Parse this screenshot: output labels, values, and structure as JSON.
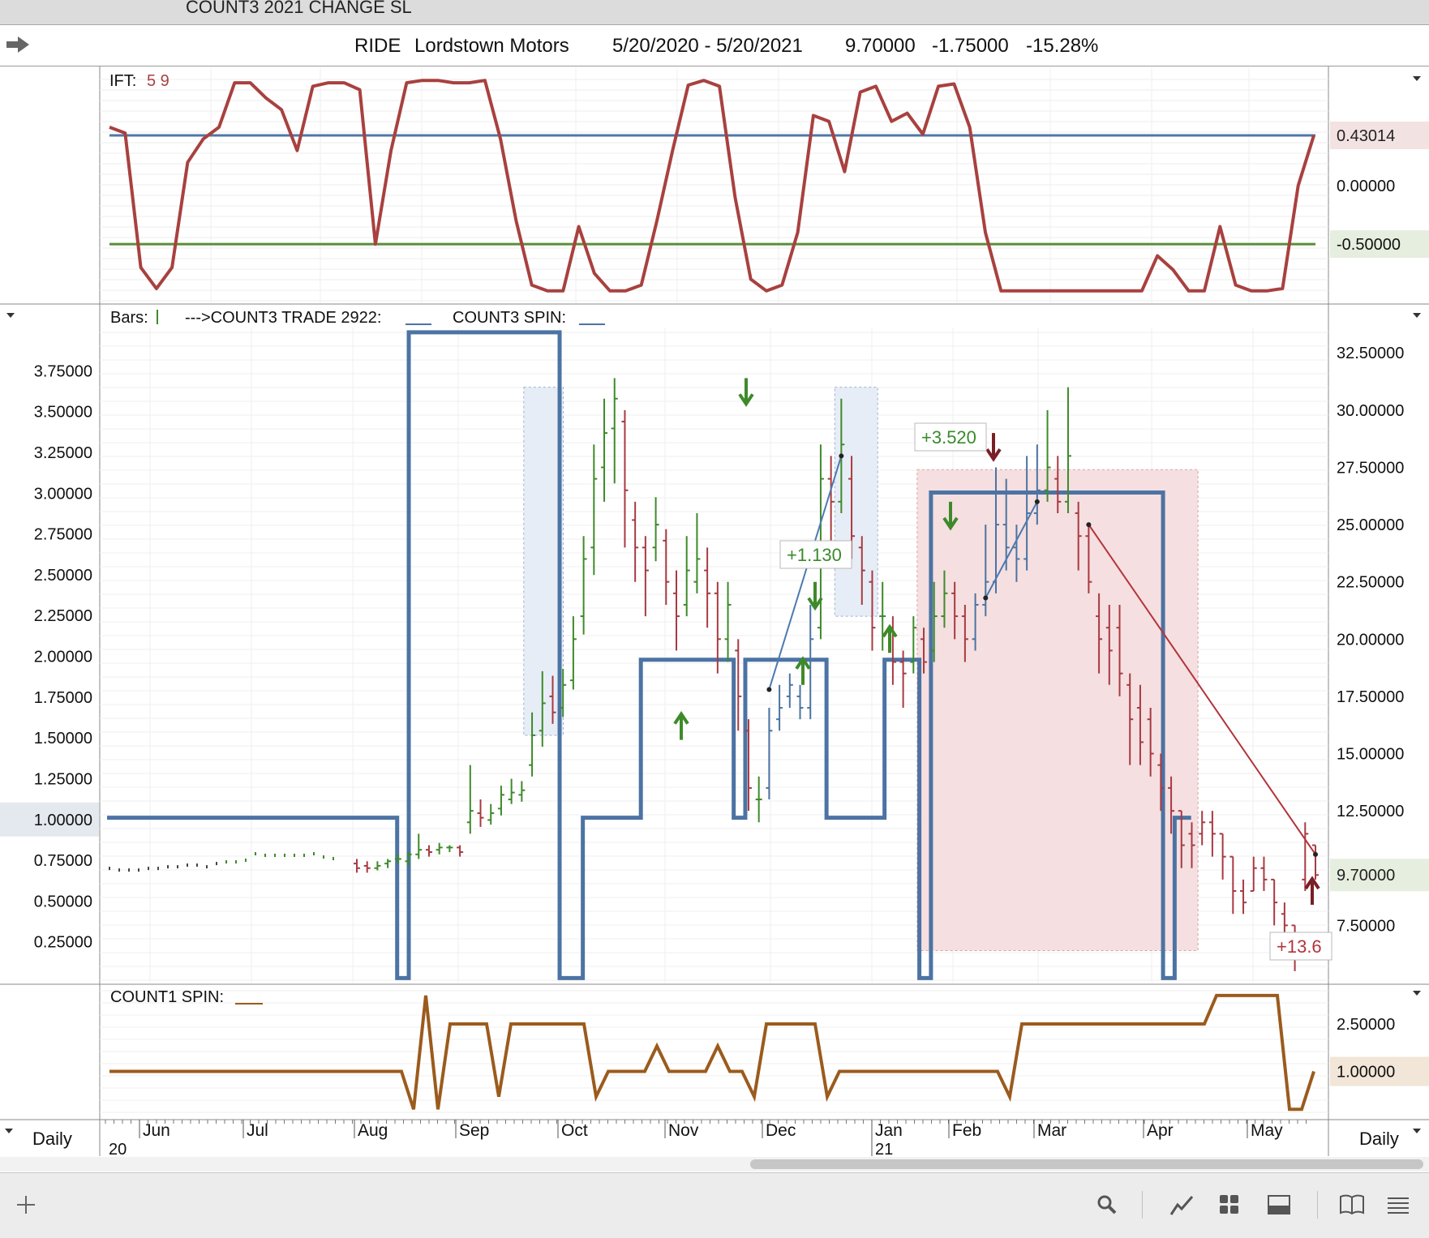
{
  "window": {
    "title": "COUNT3 2021 CHANGE SL"
  },
  "symbol_bar": {
    "ticker": "RIDE",
    "name": "Lordstown Motors",
    "range": "5/20/2020 - 5/20/2021",
    "last": "9.70000",
    "change": "-1.75000",
    "pct": "-15.28%"
  },
  "icons": [
    "arrow-right-icon",
    "plus-icon",
    "search-icon",
    "draw-icon",
    "grid-icon",
    "layout-icon",
    "book-icon",
    "menu-icon"
  ],
  "colors": {
    "ift": "#a8413f",
    "blue_line": "#5077a6",
    "green_line": "#5a8d38",
    "up_bar": "#3e8a2a",
    "down_bar": "#a83a42",
    "spin_blue": "#4c73a3",
    "count1": "#9b5b1d",
    "pink_region": "#f5dfe0",
    "blue_region": "#e7edf6"
  },
  "chart_data": [
    {
      "type": "line",
      "panel": "IFT",
      "label": "IFT:",
      "params": "5 9",
      "reference_lines": [
        {
          "value": 0.43014,
          "label": "0.43014",
          "color": "#5077a6"
        },
        {
          "value": -0.5,
          "label": "-0.50000",
          "color": "#5a8d38"
        }
      ],
      "right_ticks": [
        "0.00000"
      ],
      "ylim": [
        -0.95,
        0.95
      ],
      "series": [
        {
          "values": [
            0.5,
            0.45,
            -0.7,
            -0.88,
            -0.7,
            0.2,
            0.4,
            0.5,
            0.88,
            0.88,
            0.75,
            0.65,
            0.3,
            0.85,
            0.88,
            0.88,
            0.82,
            -0.5,
            0.3,
            0.88,
            0.9,
            0.9,
            0.88,
            0.88,
            0.9,
            0.4,
            -0.3,
            -0.85,
            -0.9,
            -0.9,
            -0.35,
            -0.75,
            -0.9,
            -0.9,
            -0.85,
            -0.3,
            0.3,
            0.86,
            0.9,
            0.85,
            -0.1,
            -0.8,
            -0.9,
            -0.85,
            -0.4,
            0.6,
            0.55,
            0.12,
            0.8,
            0.85,
            0.55,
            0.62,
            0.44,
            0.85,
            0.87,
            0.5,
            -0.4,
            -0.9,
            -0.9,
            -0.9,
            -0.9,
            -0.9,
            -0.9,
            -0.9,
            -0.9,
            -0.9,
            -0.9,
            -0.6,
            -0.72,
            -0.9,
            -0.9,
            -0.35,
            -0.85,
            -0.9,
            -0.9,
            -0.88,
            0.0,
            0.43
          ]
        }
      ]
    },
    {
      "type": "bar",
      "panel": "Price",
      "legend": [
        "Bars:",
        "--->COUNT3 TRADE 2922:",
        "COUNT3 SPIN:"
      ],
      "left_axis_ticks": [
        "3.75000",
        "3.50000",
        "3.25000",
        "3.00000",
        "2.75000",
        "2.50000",
        "2.25000",
        "2.00000",
        "1.75000",
        "1.50000",
        "1.25000",
        "1.00000",
        "0.75000",
        "0.50000",
        "0.25000"
      ],
      "left_axis_highlight": "1.00000",
      "left_ylim": [
        0,
        4.0
      ],
      "right_axis_ticks": [
        "32.50000",
        "30.00000",
        "27.50000",
        "25.00000",
        "22.50000",
        "20.00000",
        "17.50000",
        "15.00000",
        "12.50000",
        "7.50000"
      ],
      "right_axis_highlight": "9.70000",
      "right_ylim": [
        5,
        33.5
      ],
      "ohlc": [
        [
          10.2,
          10.0,
          10.4,
          9.8
        ],
        [
          10.1,
          10.0,
          10.3,
          9.8
        ],
        [
          10.0,
          10.1,
          10.3,
          9.9
        ],
        [
          10.2,
          10.3,
          10.4,
          10.0
        ],
        [
          10.4,
          10.4,
          10.6,
          10.2
        ],
        [
          10.3,
          10.6,
          10.7,
          10.1
        ],
        [
          10.6,
          10.8,
          11.5,
          10.4
        ],
        [
          10.8,
          10.7,
          11.0,
          10.5
        ],
        [
          10.8,
          10.9,
          11.1,
          10.6
        ],
        [
          10.9,
          10.9,
          11.0,
          10.7
        ],
        [
          10.9,
          10.7,
          11.0,
          10.5
        ],
        [
          12.0,
          12.5,
          14.5,
          11.5
        ],
        [
          12.4,
          12.2,
          13.0,
          11.8
        ],
        [
          12.1,
          12.4,
          12.8,
          11.9
        ],
        [
          12.6,
          13.2,
          13.6,
          12.3
        ],
        [
          13.0,
          13.3,
          13.9,
          12.8
        ],
        [
          13.2,
          13.4,
          13.8,
          12.9
        ],
        [
          14.5,
          15.8,
          16.8,
          14.0
        ],
        [
          16.0,
          17.2,
          18.6,
          15.3
        ],
        [
          17.5,
          16.8,
          18.4,
          16.3
        ],
        [
          17.0,
          18.0,
          18.7,
          16.6
        ],
        [
          18.2,
          20.0,
          21.0,
          17.8
        ],
        [
          21.0,
          23.5,
          24.5,
          20.2
        ],
        [
          24.0,
          27.0,
          28.5,
          22.8
        ],
        [
          27.5,
          29.0,
          30.5,
          26.0
        ],
        [
          29.2,
          30.5,
          31.4,
          26.8
        ],
        [
          29.5,
          26.5,
          30.0,
          24.0
        ],
        [
          25.2,
          24.0,
          26.0,
          22.5
        ],
        [
          24.0,
          23.0,
          24.5,
          21.0
        ],
        [
          24.0,
          25.0,
          26.2,
          23.4
        ],
        [
          24.3,
          22.5,
          24.8,
          21.5
        ],
        [
          22.0,
          21.0,
          23.0,
          19.5
        ],
        [
          21.5,
          23.0,
          24.5,
          21.0
        ],
        [
          22.5,
          23.5,
          25.5,
          22.0
        ],
        [
          23.0,
          22.0,
          24.0,
          20.5
        ],
        [
          22.0,
          20.0,
          22.5,
          18.5
        ],
        [
          20.0,
          21.5,
          22.5,
          19.0
        ],
        [
          19.5,
          17.5,
          20.0,
          16.0
        ],
        [
          16.0,
          13.5,
          16.5,
          12.5
        ],
        [
          13.0,
          13.0,
          14.0,
          12.0
        ],
        [
          13.5,
          16.0,
          17.0,
          13.0
        ],
        [
          16.5,
          17.0,
          18.0,
          16.0
        ],
        [
          17.5,
          18.0,
          18.5,
          17.0
        ],
        [
          17.5,
          17.0,
          18.0,
          16.5
        ],
        [
          17.0,
          20.0,
          21.5,
          16.5
        ],
        [
          20.5,
          27.0,
          28.5,
          20.0
        ],
        [
          27.0,
          26.0,
          28.0,
          24.0
        ],
        [
          26.0,
          28.5,
          30.5,
          25.5
        ],
        [
          27.0,
          24.5,
          28.0,
          23.5
        ],
        [
          24.0,
          23.0,
          24.5,
          21.5
        ],
        [
          22.5,
          20.5,
          23.0,
          19.5
        ],
        [
          21.0,
          21.0,
          22.5,
          19.5
        ],
        [
          20.5,
          19.0,
          21.0,
          18.0
        ],
        [
          19.0,
          18.5,
          19.5,
          17.0
        ],
        [
          19.0,
          20.5,
          21.0,
          18.5
        ],
        [
          20.0,
          19.0,
          20.5,
          18.5
        ],
        [
          19.5,
          21.0,
          22.5,
          19.0
        ],
        [
          21.0,
          22.0,
          23.0,
          20.5
        ],
        [
          22.0,
          21.0,
          22.5,
          20.0
        ],
        [
          21.0,
          20.0,
          21.5,
          19.0
        ],
        [
          20.0,
          21.5,
          22.0,
          19.5
        ],
        [
          21.5,
          22.5,
          25.0,
          21.0
        ],
        [
          22.5,
          25.0,
          27.5,
          22.0
        ],
        [
          25.0,
          24.0,
          27.0,
          23.0
        ],
        [
          24.0,
          23.5,
          25.0,
          22.5
        ],
        [
          23.5,
          25.5,
          28.0,
          23.0
        ],
        [
          25.5,
          26.5,
          28.5,
          25.0
        ],
        [
          26.5,
          27.5,
          30.0,
          26.0
        ],
        [
          27.0,
          26.0,
          28.0,
          25.5
        ],
        [
          26.0,
          28.0,
          31.0,
          25.5
        ],
        [
          25.5,
          24.5,
          26.0,
          23.0
        ],
        [
          24.5,
          22.5,
          25.0,
          22.0
        ],
        [
          21.0,
          20.0,
          22.0,
          18.5
        ],
        [
          20.5,
          19.5,
          21.5,
          18.0
        ],
        [
          20.5,
          18.5,
          21.5,
          17.5
        ],
        [
          18.0,
          16.5,
          18.5,
          14.5
        ],
        [
          17.0,
          15.5,
          18.0,
          14.5
        ],
        [
          16.5,
          15.0,
          17.0,
          14.0
        ],
        [
          14.5,
          13.5,
          15.0,
          12.5
        ],
        [
          13.5,
          12.5,
          14.0,
          11.5
        ],
        [
          12.5,
          11.0,
          12.5,
          10.0
        ],
        [
          11.5,
          11.0,
          12.0,
          10.0
        ],
        [
          11.5,
          12.0,
          12.5,
          11.0
        ],
        [
          12.0,
          11.5,
          12.5,
          10.5
        ],
        [
          11.5,
          10.5,
          11.5,
          9.5
        ],
        [
          10.5,
          9.0,
          10.5,
          8.0
        ],
        [
          9.0,
          8.5,
          9.5,
          8.0
        ],
        [
          9.0,
          10.0,
          10.5,
          9.0
        ],
        [
          10.0,
          9.5,
          10.5,
          9.0
        ],
        [
          9.5,
          8.5,
          9.5,
          7.5
        ],
        [
          8.0,
          7.5,
          8.5,
          6.5
        ],
        [
          7.5,
          6.5,
          7.5,
          5.5
        ],
        [
          9.5,
          11.5,
          12.0,
          9.0
        ],
        [
          11.0,
          9.7,
          11.0,
          9.5
        ]
      ],
      "trades": [
        {
          "label": "+1.130",
          "direction": "long"
        },
        {
          "label": "+3.520",
          "direction": "long"
        },
        {
          "label": "+13.6",
          "direction": "short"
        }
      ],
      "spin_series": {
        "name": "COUNT3 SPIN",
        "values": [
          1,
          1,
          1,
          1,
          1,
          1,
          1,
          1,
          1,
          1,
          1,
          1,
          1,
          1,
          1,
          1,
          1,
          1,
          1,
          1,
          1,
          1,
          1,
          1,
          1,
          0,
          4,
          4,
          4,
          4,
          4,
          4,
          4,
          4,
          4,
          4,
          4,
          4,
          4,
          0,
          0,
          1,
          1,
          1,
          1,
          1,
          2,
          2,
          2,
          2,
          2,
          2,
          2,
          2,
          1,
          2,
          2,
          2,
          2,
          2,
          2,
          2,
          1,
          1,
          1,
          1,
          1,
          2,
          2,
          2,
          0,
          3,
          3,
          3,
          3,
          3,
          3,
          3,
          3,
          3,
          3,
          3,
          3,
          3,
          3,
          3,
          3,
          3,
          3,
          3,
          3,
          0,
          1,
          1
        ]
      }
    },
    {
      "type": "line",
      "panel": "COUNT1",
      "label": "COUNT1 SPIN:",
      "right_ticks": [
        "2.50000",
        "1.00000"
      ],
      "ylim": [
        -0.5,
        3.5
      ],
      "series": [
        {
          "name": "COUNT1 SPIN",
          "values": [
            1,
            1,
            1,
            1,
            1,
            1,
            1,
            1,
            1,
            1,
            1,
            1,
            1,
            1,
            1,
            1,
            1,
            1,
            1,
            1,
            1,
            1,
            1,
            1,
            1,
            -0.2,
            3.4,
            -0.2,
            2.5,
            2.5,
            2.5,
            2.5,
            0.2,
            2.5,
            2.5,
            2.5,
            2.5,
            2.5,
            2.5,
            2.5,
            0.2,
            1,
            1,
            1,
            1,
            1.8,
            1,
            1,
            1,
            1,
            1.8,
            1,
            1,
            0.2,
            2.5,
            2.5,
            2.5,
            2.5,
            2.5,
            0.2,
            1,
            1,
            1,
            1,
            1,
            1,
            1,
            1,
            1,
            1,
            1,
            1,
            1,
            1,
            0.2,
            2.5,
            2.5,
            2.5,
            2.5,
            2.5,
            2.5,
            2.5,
            2.5,
            2.5,
            2.5,
            2.5,
            2.5,
            2.5,
            2.5,
            2.5,
            2.5,
            3.4,
            3.4,
            3.4,
            3.4,
            3.4,
            3.4,
            -0.2,
            -0.2,
            1
          ]
        }
      ]
    }
  ],
  "x_axis": {
    "months": [
      "Jun",
      "Jul",
      "Aug",
      "Sep",
      "Oct",
      "Nov",
      "Dec",
      "Jan",
      "Feb",
      "Mar",
      "Apr",
      "May"
    ],
    "years": [
      "20",
      "21"
    ],
    "period_left": "Daily",
    "period_right": "Daily"
  }
}
